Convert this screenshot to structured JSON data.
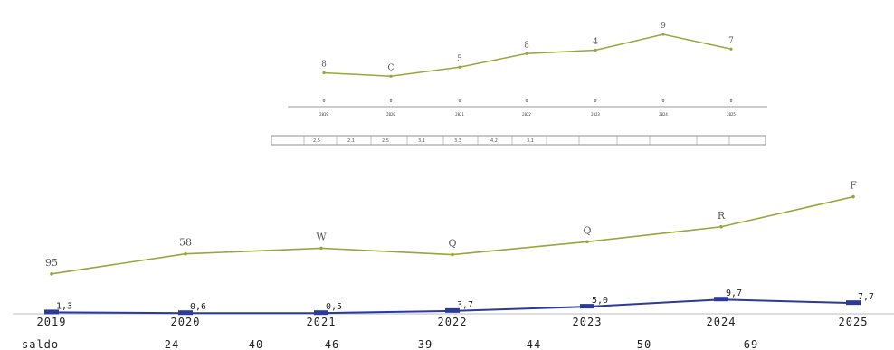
{
  "chart_data": [
    {
      "type": "line",
      "categories": [
        "2019",
        "2020",
        "2021",
        "2022",
        "2023",
        "2024",
        "2025"
      ],
      "series": [
        {
          "values": [
            3.0,
            2.7,
            3.5,
            4.7,
            5.0,
            6.4,
            5.1
          ],
          "point_labels": [
            "8",
            "C",
            "5",
            "8",
            "4",
            "9",
            "7"
          ],
          "color": "#9aa53a"
        }
      ],
      "lower_markers": [
        "0",
        "0",
        "0",
        "0",
        "0",
        "0",
        "0"
      ],
      "table_cells": [
        "2,5",
        "2,1",
        "2,5",
        "3,1",
        "3,3",
        "4,2",
        "3,1",
        "",
        "",
        ""
      ],
      "ylim": [
        0,
        8
      ]
    },
    {
      "type": "line",
      "categories": [
        "2019",
        "2020",
        "2021",
        "2022",
        "2023",
        "2024",
        "2025"
      ],
      "series": [
        {
          "values": [
            5.6,
            8.4,
            9.2,
            8.3,
            10.1,
            12.2,
            16.4
          ],
          "point_labels": [
            "95",
            "58",
            "W",
            "Q",
            "Q",
            "R",
            "F"
          ],
          "color": "#9aa53a"
        },
        {
          "values": [
            0.2,
            0.1,
            0.1,
            0.4,
            1.0,
            2.0,
            1.5
          ],
          "point_labels": [
            "1,3",
            "0,6",
            "0,5",
            "3,7",
            "5,0",
            "9,7",
            "7,7"
          ],
          "color": "#2c3a9a"
        }
      ],
      "footer": [
        "saldo",
        "24",
        "40",
        "46",
        "39",
        "44",
        "50",
        "69"
      ],
      "ylim": [
        0,
        18
      ]
    }
  ],
  "colors": {
    "axis": "#999999",
    "olive": "#9aa53a",
    "navy": "#2c3a9a"
  }
}
